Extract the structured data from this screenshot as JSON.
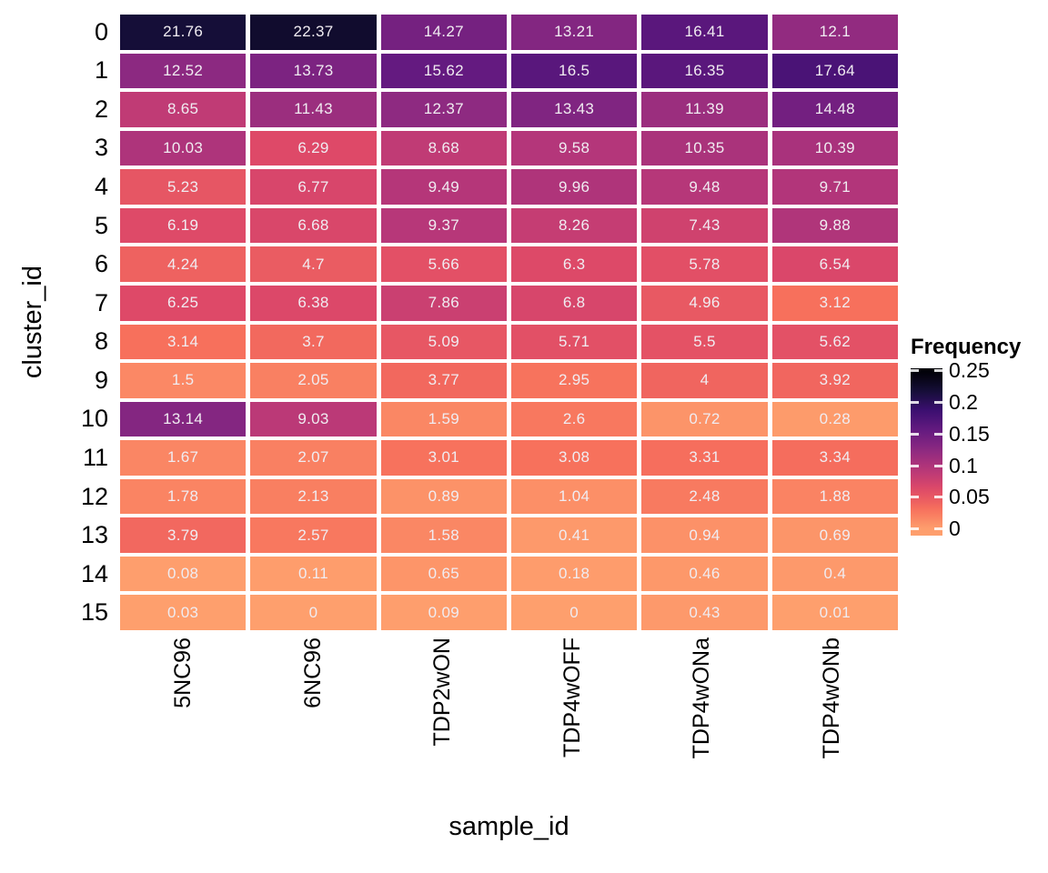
{
  "chart_data": {
    "type": "heatmap",
    "title": "",
    "xlabel": "sample_id",
    "ylabel": "cluster_id",
    "x_categories": [
      "5NC96",
      "6NC96",
      "TDP2wON",
      "TDP4wOFF",
      "TDP4wONa",
      "TDP4wONb"
    ],
    "y_categories": [
      "0",
      "1",
      "2",
      "3",
      "4",
      "5",
      "6",
      "7",
      "8",
      "9",
      "10",
      "11",
      "12",
      "13",
      "14",
      "15"
    ],
    "values": [
      [
        "21.76",
        "22.37",
        "14.27",
        "13.21",
        "16.41",
        "12.1"
      ],
      [
        "12.52",
        "13.73",
        "15.62",
        "16.5",
        "16.35",
        "17.64"
      ],
      [
        "8.65",
        "11.43",
        "12.37",
        "13.43",
        "11.39",
        "14.48"
      ],
      [
        "10.03",
        "6.29",
        "8.68",
        "9.58",
        "10.35",
        "10.39"
      ],
      [
        "5.23",
        "6.77",
        "9.49",
        "9.96",
        "9.48",
        "9.71"
      ],
      [
        "6.19",
        "6.68",
        "9.37",
        "8.26",
        "7.43",
        "9.88"
      ],
      [
        "4.24",
        "4.7",
        "5.66",
        "6.3",
        "5.78",
        "6.54"
      ],
      [
        "6.25",
        "6.38",
        "7.86",
        "6.8",
        "4.96",
        "3.12"
      ],
      [
        "3.14",
        "3.7",
        "5.09",
        "5.71",
        "5.5",
        "5.62"
      ],
      [
        "1.5",
        "2.05",
        "3.77",
        "2.95",
        "4",
        "3.92"
      ],
      [
        "13.14",
        "9.03",
        "1.59",
        "2.6",
        "0.72",
        "0.28"
      ],
      [
        "1.67",
        "2.07",
        "3.01",
        "3.08",
        "3.31",
        "3.34"
      ],
      [
        "1.78",
        "2.13",
        "0.89",
        "1.04",
        "2.48",
        "1.88"
      ],
      [
        "3.79",
        "2.57",
        "1.58",
        "0.41",
        "0.94",
        "0.69"
      ],
      [
        "0.08",
        "0.11",
        "0.65",
        "0.18",
        "0.46",
        "0.4"
      ],
      [
        "0.03",
        "0",
        "0.09",
        "0",
        "0.43",
        "0.01"
      ]
    ],
    "values_unit": "percent of cells (displayed numbers are frequency x 100)",
    "legend": {
      "title": "Frequency",
      "tick_labels": [
        "0.25",
        "0.2",
        "0.15",
        "0.1",
        "0.05",
        "0"
      ],
      "tick_values": [
        0.25,
        0.2,
        0.15,
        0.1,
        0.05,
        0
      ],
      "range": [
        0,
        0.25
      ],
      "position": "right"
    },
    "colors": {
      "background": "#ffffff",
      "cell_text": "#f0ecf1",
      "axis_text": "#000000",
      "grid_gap": "#ffffff",
      "scale_description": "reversed magma segment: value 0 -> #fe9f6d (peach), value 0.25 -> #000004 (black)",
      "magma_anchors": [
        [
          0.0,
          "#000004"
        ],
        [
          0.1,
          "#140e36"
        ],
        [
          0.2,
          "#3b0f70"
        ],
        [
          0.3,
          "#641a80"
        ],
        [
          0.4,
          "#8c2981"
        ],
        [
          0.5,
          "#b73779"
        ],
        [
          0.6,
          "#de4968"
        ],
        [
          0.7,
          "#f7705c"
        ],
        [
          0.8,
          "#fe9f6d"
        ]
      ]
    },
    "layout": {
      "grid": "off",
      "legend_position": "right",
      "x_tick_rotation_deg": 90
    }
  }
}
